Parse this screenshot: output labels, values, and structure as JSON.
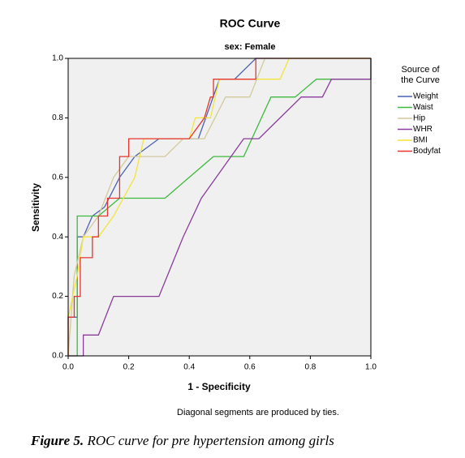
{
  "chart_data": {
    "type": "line",
    "title": "ROC Curve",
    "subtitle": "sex: Female",
    "x_label": "1 - Specificity",
    "y_label": "Sensitivity",
    "legend_title": [
      "Source of",
      "the Curve"
    ],
    "footnote": "Diagonal segments are produced by ties.",
    "caption_label": "Figure 5.",
    "caption": "ROC curve for pre hypertension among girls",
    "xlim": [
      0,
      1
    ],
    "ylim": [
      0,
      1
    ],
    "xticks": [
      {
        "value": 0,
        "label": "0.0"
      },
      {
        "value": 0.2,
        "label": "0.2"
      },
      {
        "value": 0.4,
        "label": "0.4"
      },
      {
        "value": 0.6,
        "label": "0.6"
      },
      {
        "value": 0.8,
        "label": "0.8"
      },
      {
        "value": 1,
        "label": "1.0"
      }
    ],
    "yticks": [
      {
        "value": 0,
        "label": "0.0"
      },
      {
        "value": 0.2,
        "label": "0.2"
      },
      {
        "value": 0.4,
        "label": "0.4"
      },
      {
        "value": 0.6,
        "label": "0.6"
      },
      {
        "value": 0.8,
        "label": "0.8"
      },
      {
        "value": 1,
        "label": "1.0"
      }
    ],
    "legend_position": "right",
    "series": [
      {
        "name": "Weight",
        "color": "#4a62b0",
        "x": [
          0,
          0,
          0.03,
          0.03,
          0.05,
          0.08,
          0.12,
          0.17,
          0.22,
          0.26,
          0.3,
          0.43,
          0.5,
          0.55,
          0.62,
          1
        ],
        "values": [
          0,
          0.13,
          0.13,
          0.4,
          0.4,
          0.47,
          0.5,
          0.6,
          0.67,
          0.7,
          0.73,
          0.73,
          0.93,
          0.93,
          1,
          1
        ]
      },
      {
        "name": "Waist",
        "color": "#3dba3d",
        "x": [
          0,
          0.03,
          0.03,
          0.1,
          0.17,
          0.32,
          0.4,
          0.48,
          0.58,
          0.67,
          0.75,
          0.82,
          0.87,
          1,
          1
        ],
        "values": [
          0,
          0,
          0.47,
          0.47,
          0.53,
          0.53,
          0.6,
          0.67,
          0.67,
          0.87,
          0.87,
          0.93,
          0.93,
          0.93,
          1
        ]
      },
      {
        "name": "Hip",
        "color": "#d3c99c",
        "x": [
          0,
          0.02,
          0.05,
          0.1,
          0.15,
          0.2,
          0.32,
          0.38,
          0.45,
          0.52,
          0.6,
          0.65,
          1
        ],
        "values": [
          0,
          0.27,
          0.4,
          0.47,
          0.6,
          0.67,
          0.67,
          0.73,
          0.73,
          0.87,
          0.87,
          1,
          1
        ]
      },
      {
        "name": "WHR",
        "color": "#8a3c9c",
        "x": [
          0,
          0.05,
          0.05,
          0.1,
          0.15,
          0.3,
          0.38,
          0.44,
          0.58,
          0.63,
          0.7,
          0.77,
          0.84,
          0.87,
          1,
          1
        ],
        "values": [
          0,
          0,
          0.07,
          0.07,
          0.2,
          0.2,
          0.4,
          0.53,
          0.73,
          0.73,
          0.8,
          0.87,
          0.87,
          0.93,
          0.93,
          1
        ]
      },
      {
        "name": "BMI",
        "color": "#f2e43a",
        "x": [
          0,
          0,
          0.03,
          0.05,
          0.1,
          0.15,
          0.22,
          0.25,
          0.4,
          0.42,
          0.47,
          0.5,
          0.7,
          0.73,
          1
        ],
        "values": [
          0,
          0.13,
          0.27,
          0.4,
          0.4,
          0.47,
          0.6,
          0.73,
          0.73,
          0.8,
          0.8,
          0.93,
          0.93,
          1,
          1
        ]
      },
      {
        "name": "Bodyfat",
        "color": "#e8342e",
        "x": [
          0,
          0,
          0.02,
          0.02,
          0.04,
          0.04,
          0.08,
          0.08,
          0.1,
          0.1,
          0.13,
          0.13,
          0.17,
          0.17,
          0.2,
          0.2,
          0.4,
          0.45,
          0.47,
          0.48,
          0.48,
          0.62,
          0.62,
          1
        ],
        "values": [
          0,
          0.13,
          0.13,
          0.2,
          0.2,
          0.33,
          0.33,
          0.4,
          0.4,
          0.47,
          0.47,
          0.53,
          0.53,
          0.67,
          0.67,
          0.73,
          0.73,
          0.8,
          0.87,
          0.87,
          0.93,
          0.93,
          1,
          1
        ]
      }
    ]
  }
}
